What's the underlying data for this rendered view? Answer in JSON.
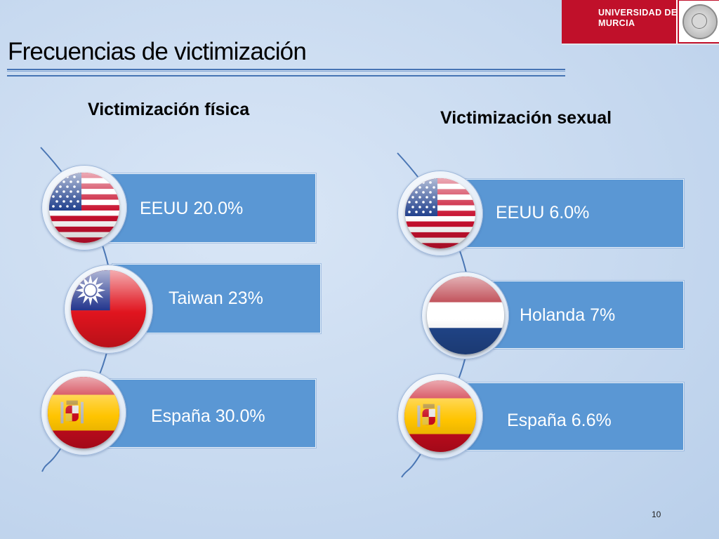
{
  "logo": {
    "line1": "UNIVERSIDAD DE",
    "line2": "MURCIA",
    "brand_color": "#c0102a"
  },
  "slide": {
    "title": "Frecuencias de victimización",
    "page_number": "10"
  },
  "physical": {
    "heading": "Victimización física",
    "items": [
      {
        "label": "EEUU 20.0%",
        "flag": "usa-flag-icon"
      },
      {
        "label": "Taiwan 23%",
        "flag": "taiwan-flag-icon"
      },
      {
        "label": "España 30.0%",
        "flag": "spain-flag-icon"
      }
    ]
  },
  "sexual": {
    "heading": "Victimización sexual",
    "items": [
      {
        "label": "EEUU 6.0%",
        "flag": "usa-flag-icon"
      },
      {
        "label": "Holanda 7%",
        "flag": "netherlands-flag-icon"
      },
      {
        "label": "España 6.6%",
        "flag": "spain-flag-icon"
      }
    ]
  },
  "colors": {
    "card_fill": "#5a97d4",
    "title_rule": "#4674b4"
  }
}
